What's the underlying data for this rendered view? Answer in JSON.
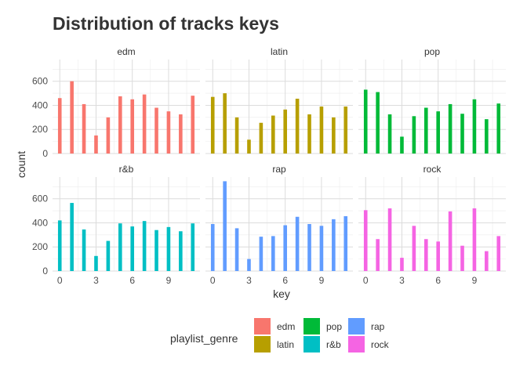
{
  "chart_data": {
    "type": "bar",
    "title": "Distribution of tracks keys",
    "xlabel": "key",
    "ylabel": "count",
    "x_ticks": [
      0,
      3,
      6,
      9
    ],
    "y_ticks": [
      0,
      200,
      400,
      600
    ],
    "xlim": [
      -0.6,
      11.6
    ],
    "ylim": [
      0,
      780
    ],
    "grid": true,
    "legend": {
      "title": "playlist_genre",
      "position": "bottom"
    },
    "keys": [
      0,
      1,
      2,
      3,
      4,
      5,
      6,
      7,
      8,
      9,
      10,
      11
    ],
    "panels": [
      {
        "name": "edm",
        "color": "#F8766D",
        "values": [
          460,
          600,
          410,
          150,
          300,
          475,
          450,
          490,
          380,
          350,
          325,
          480
        ]
      },
      {
        "name": "latin",
        "color": "#B79F00",
        "values": [
          470,
          500,
          300,
          115,
          255,
          315,
          365,
          455,
          325,
          390,
          300,
          390
        ]
      },
      {
        "name": "pop",
        "color": "#00BA38",
        "values": [
          530,
          510,
          325,
          140,
          310,
          380,
          350,
          410,
          330,
          450,
          285,
          415
        ]
      },
      {
        "name": "r&b",
        "color": "#00BFC4",
        "values": [
          420,
          565,
          345,
          125,
          250,
          395,
          370,
          415,
          340,
          365,
          330,
          395
        ]
      },
      {
        "name": "rap",
        "color": "#619CFF",
        "values": [
          390,
          745,
          355,
          100,
          285,
          290,
          380,
          450,
          390,
          375,
          430,
          455
        ]
      },
      {
        "name": "rock",
        "color": "#F564E3",
        "values": [
          505,
          265,
          520,
          110,
          375,
          265,
          245,
          495,
          210,
          520,
          165,
          290
        ]
      }
    ]
  }
}
